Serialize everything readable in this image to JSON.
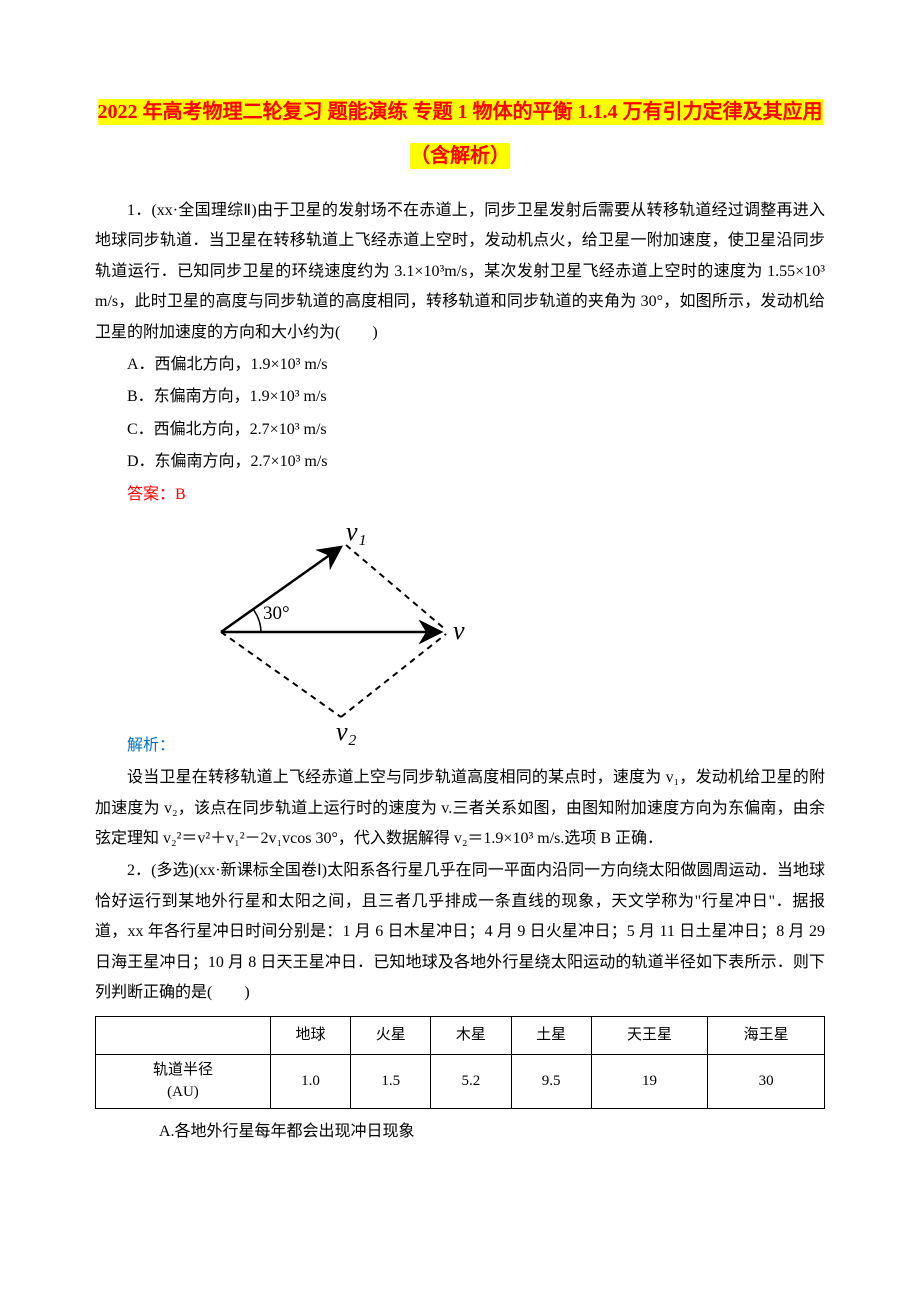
{
  "title": "2022 年高考物理二轮复习 题能演练 专题 1 物体的平衡 1.1.4 万有引力定律及其应用（含解析）",
  "q1": {
    "stem": "1．(xx·全国理综Ⅱ)由于卫星的发射场不在赤道上，同步卫星发射后需要从转移轨道经过调整再进入地球同步轨道．当卫星在转移轨道上飞经赤道上空时，发动机点火，给卫星一附加速度，使卫星沿同步轨道运行．已知同步卫星的环绕速度约为 3.1×10³m/s，某次发射卫星飞经赤道上空时的速度为 1.55×10³ m/s，此时卫星的高度与同步轨道的高度相同，转移轨道和同步轨道的夹角为 30°，如图所示，发动机给卫星的附加速度的方向和大小约为(　　)",
    "optA": "A．西偏北方向，1.9×10³ m/s",
    "optB": "B．东偏南方向，1.9×10³ m/s",
    "optC": "C．西偏北方向，2.7×10³ m/s",
    "optD": "D．东偏南方向，2.7×10³ m/s",
    "answer": "答案：B",
    "label": "解析：",
    "explanation": "设当卫星在转移轨道上飞经赤道上空与同步轨道高度相同的某点时，速度为 v₁，发动机给卫星的附加速度为 v₂，该点在同步轨道上运行时的速度为 v.三者关系如图，由图知附加速度方向为东偏南，由余弦定理知 v₂²＝v²＋v₁²－2v₁vcos 30°，代入数据解得 v₂＝1.9×10³ m/s.选项 B 正确．"
  },
  "diagram": {
    "v1_label": "v₁",
    "v2_label": "v₂",
    "v_label": "v",
    "angle_label": "30°",
    "stroke": "#000000",
    "stroke_width": 2,
    "dash": "6,5"
  },
  "q2": {
    "stem": "2．(多选)(xx·新课标全国卷Ⅰ)太阳系各行星几乎在同一平面内沿同一方向绕太阳做圆周运动．当地球恰好运行到某地外行星和太阳之间，且三者几乎排成一条直线的现象，天文学称为\"行星冲日\"．据报道，xx 年各行星冲日时间分别是：1 月 6 日木星冲日；4 月 9 日火星冲日；5 月 11 日土星冲日；8 月 29 日海王星冲日；10 月 8 日天王星冲日．已知地球及各地外行星绕太阳运动的轨道半径如下表所示．则下列判断正确的是(　　)",
    "optA": "A.各地外行星每年都会出现冲日现象"
  },
  "table": {
    "row_header": "轨道半径(AU)",
    "columns": [
      "地球",
      "火星",
      "木星",
      "土星",
      "天王星",
      "海王星"
    ],
    "values": [
      "1.0",
      "1.5",
      "5.2",
      "9.5",
      "19",
      "30"
    ],
    "col_widths": [
      "24%",
      "11%",
      "11%",
      "11%",
      "11%",
      "16%",
      "16%"
    ]
  }
}
